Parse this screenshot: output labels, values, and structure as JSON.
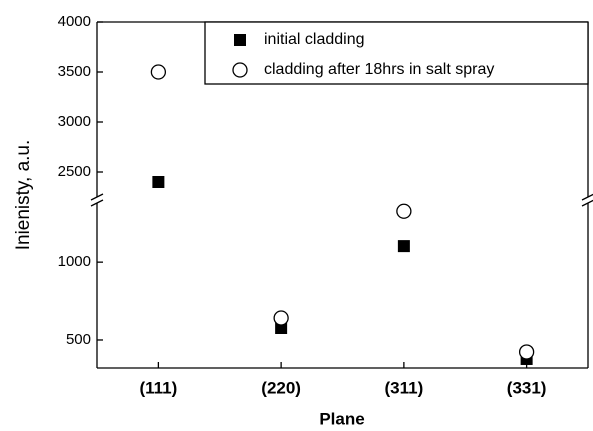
{
  "chart_data": {
    "type": "scatter",
    "x_label": "Plane",
    "y_label": "Inienisty, a.u.",
    "categories": [
      "(111)",
      "(220)",
      "(311)",
      "(331)"
    ],
    "series": [
      {
        "name": "initial cladding",
        "color": "#000000",
        "marker": "square-filled",
        "values": [
          2400,
          577,
          1103,
          378
        ]
      },
      {
        "name": "cladding after 18hrs in salt spray",
        "color": "#000000",
        "marker": "circle-open",
        "values": [
          3500,
          641,
          1327,
          423
        ]
      }
    ],
    "y_segments": [
      {
        "ylim": [
          320,
          1380
        ],
        "yticks": [
          500,
          1000
        ]
      },
      {
        "ylim": [
          2250,
          4000
        ],
        "yticks": [
          2500,
          3000,
          3500,
          4000
        ]
      }
    ],
    "legend": "top-right"
  }
}
